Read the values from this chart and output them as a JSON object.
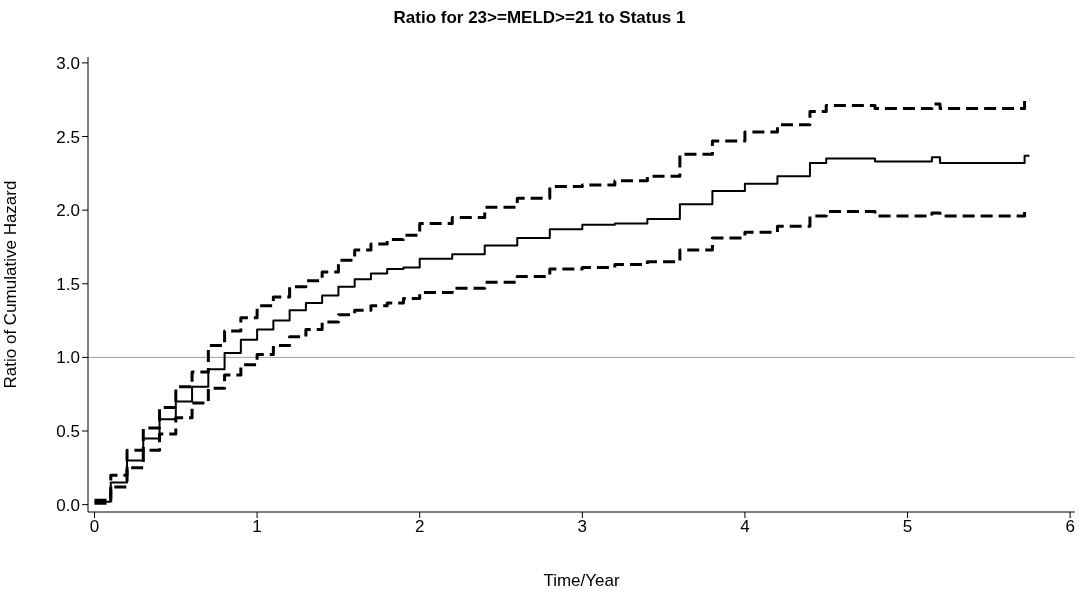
{
  "chart_data": {
    "type": "step",
    "title": "Ratio for 23>=MELD>=21 to Status 1",
    "xlabel": "Time/Year",
    "ylabel": "Ratio of Cumulative Hazard",
    "x": [
      0,
      0.1,
      0.2,
      0.3,
      0.4,
      0.5,
      0.6,
      0.7,
      0.8,
      0.9,
      1.0,
      1.1,
      1.2,
      1.3,
      1.4,
      1.5,
      1.6,
      1.7,
      1.8,
      1.9,
      2.0,
      2.2,
      2.4,
      2.6,
      2.8,
      3.0,
      3.2,
      3.4,
      3.6,
      3.8,
      4.0,
      4.2,
      4.4,
      4.5,
      4.7,
      4.8,
      5.1,
      5.15,
      5.2,
      5.7,
      5.72,
      5.75
    ],
    "series": [
      {
        "color": "#000000",
        "line_style": "dashed",
        "values": [
          0.03,
          0.2,
          0.37,
          0.52,
          0.66,
          0.8,
          0.9,
          1.08,
          1.18,
          1.27,
          1.35,
          1.41,
          1.48,
          1.52,
          1.58,
          1.66,
          1.73,
          1.77,
          1.8,
          1.83,
          1.91,
          1.95,
          2.02,
          2.08,
          2.16,
          2.17,
          2.2,
          2.23,
          2.38,
          2.47,
          2.53,
          2.58,
          2.67,
          2.71,
          2.71,
          2.69,
          2.69,
          2.72,
          2.69,
          2.69,
          2.75,
          2.75
        ]
      },
      {
        "color": "#000000",
        "line_style": "solid",
        "values": [
          0.02,
          0.15,
          0.3,
          0.45,
          0.58,
          0.7,
          0.8,
          0.92,
          1.03,
          1.12,
          1.19,
          1.25,
          1.32,
          1.37,
          1.42,
          1.48,
          1.53,
          1.57,
          1.6,
          1.61,
          1.67,
          1.7,
          1.76,
          1.81,
          1.87,
          1.9,
          1.91,
          1.94,
          2.04,
          2.13,
          2.18,
          2.23,
          2.32,
          2.35,
          2.35,
          2.33,
          2.33,
          2.36,
          2.32,
          2.32,
          2.37,
          2.37
        ]
      },
      {
        "color": "#000000",
        "line_style": "dashed",
        "values": [
          0.01,
          0.12,
          0.25,
          0.37,
          0.48,
          0.59,
          0.69,
          0.79,
          0.88,
          0.95,
          1.02,
          1.08,
          1.14,
          1.19,
          1.24,
          1.29,
          1.32,
          1.35,
          1.37,
          1.4,
          1.44,
          1.47,
          1.51,
          1.55,
          1.6,
          1.61,
          1.63,
          1.65,
          1.73,
          1.81,
          1.85,
          1.89,
          1.96,
          1.99,
          1.99,
          1.96,
          1.96,
          1.98,
          1.96,
          1.96,
          1.99,
          1.99
        ]
      }
    ],
    "xlim": [
      -0.04,
      6.03
    ],
    "xticks": [
      0,
      1,
      2,
      3,
      4,
      5,
      6
    ],
    "ylim": [
      -0.05,
      3.04
    ],
    "yticks": [
      {
        "value": 0,
        "label": "0.0"
      },
      {
        "value": 0.5,
        "label": "0.5"
      },
      {
        "value": 1,
        "label": "1.0"
      },
      {
        "value": 1.5,
        "label": "1.5"
      },
      {
        "value": 2,
        "label": "2.0"
      },
      {
        "value": 2.5,
        "label": "2.5"
      },
      {
        "value": 3,
        "label": "3.0"
      }
    ],
    "ref_lines": [
      {
        "axis": "y",
        "value": 1,
        "color": "#a0a0a0"
      }
    ]
  }
}
